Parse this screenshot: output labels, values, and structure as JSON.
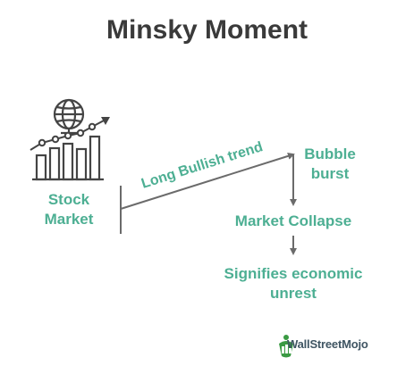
{
  "title": "Minsky Moment",
  "stock_market_label": [
    "Stock",
    "Market"
  ],
  "trend_label": "Long Bullish trend",
  "bubble_label": [
    "Bubble",
    "burst"
  ],
  "collapse_label": "Market Collapse",
  "unrest_label": [
    "Signifies economic",
    "unrest"
  ],
  "brand": {
    "name": "WallStreetMojo"
  },
  "colors": {
    "title": "#3a3a3a",
    "accent": "#4daf93",
    "arrow": "#6b6b6b",
    "icon": "#444444",
    "brand_green": "#3a9a43",
    "brand_text": "#3f5563"
  },
  "icons": [
    "globe-icon",
    "bar-chart-icon",
    "trend-arrow-icon",
    "wallstreetmojo-logo-icon"
  ]
}
